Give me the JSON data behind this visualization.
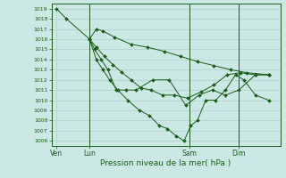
{
  "title": "Pression niveau de la mer( hPa )",
  "background_color": "#cce8e4",
  "grid_color": "#b0cece",
  "line_color": "#1a5c1a",
  "ylim_min": 1005.5,
  "ylim_max": 1019.5,
  "xlim_min": -0.3,
  "xlim_max": 13.5,
  "xtick_labels": [
    "Ven",
    "Lun",
    "Sam",
    "Dim"
  ],
  "xtick_positions": [
    0.0,
    2.0,
    8.0,
    11.0
  ],
  "vlines": [
    2.0,
    8.0,
    11.0
  ],
  "s1_x": [
    0.0,
    0.6,
    2.0,
    2.4,
    2.8,
    3.5,
    4.5,
    5.5,
    6.5,
    7.5,
    8.5,
    9.5,
    10.5,
    11.5,
    12.8
  ],
  "s1_y": [
    1019,
    1018,
    1016,
    1017,
    1016.8,
    1016.2,
    1015.5,
    1015.2,
    1014.8,
    1014.3,
    1013.8,
    1013.4,
    1013.0,
    1012.7,
    1012.5
  ],
  "s2_x": [
    2.0,
    2.3,
    2.7,
    3.1,
    3.6,
    4.2,
    4.8,
    5.8,
    6.8,
    7.8,
    8.6,
    9.4,
    10.2,
    11.0,
    12.0,
    12.8
  ],
  "s2_y": [
    1016,
    1015,
    1014,
    1013,
    1011,
    1011,
    1011,
    1012,
    1012,
    1009.5,
    1010.5,
    1011,
    1010.5,
    1011,
    1012.5,
    1012.5
  ],
  "s3_x": [
    2.0,
    2.4,
    2.8,
    3.2,
    3.7,
    4.3,
    5.0,
    5.6,
    6.2,
    6.7,
    7.2,
    7.7,
    8.1,
    8.5,
    9.0,
    9.6,
    10.2,
    10.8,
    11.3,
    12.0,
    12.8
  ],
  "s3_y": [
    1016,
    1014,
    1013,
    1012,
    1011,
    1010,
    1009,
    1008.5,
    1007.5,
    1007.2,
    1006.5,
    1006,
    1007.5,
    1008,
    1010,
    1010,
    1011,
    1012.5,
    1012,
    1010.5,
    1010
  ],
  "s4_x": [
    2.0,
    2.4,
    2.9,
    3.4,
    3.9,
    4.5,
    5.1,
    5.7,
    6.4,
    7.1,
    7.9,
    8.7,
    9.5,
    10.3,
    11.1,
    12.0,
    12.8
  ],
  "s4_y": [
    1016,
    1015.2,
    1014.3,
    1013.5,
    1012.8,
    1012,
    1011.2,
    1011,
    1010.5,
    1010.5,
    1010.2,
    1010.8,
    1011.5,
    1012.5,
    1012.7,
    1012.5,
    1012.5
  ]
}
